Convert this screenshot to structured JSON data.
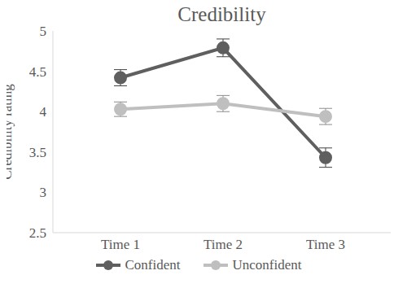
{
  "chart_data": {
    "type": "line",
    "title": "Credibility",
    "y_label": "Credibility rating",
    "categories": [
      "Time 1",
      "Time 2",
      "Time 3"
    ],
    "series": [
      {
        "name": "Confident",
        "color": "#5f5f5f",
        "values": [
          4.42,
          4.79,
          3.43
        ],
        "errors": [
          0.1,
          0.11,
          0.12
        ],
        "marker": "circle"
      },
      {
        "name": "Unconfident",
        "color": "#bfbfbf",
        "values": [
          4.03,
          4.1,
          3.94
        ],
        "errors": [
          0.09,
          0.1,
          0.1
        ],
        "marker": "circle"
      }
    ],
    "ylim": [
      2.5,
      5
    ],
    "yticks": [
      2.5,
      3,
      3.5,
      4,
      4.5,
      5
    ],
    "grid": false,
    "legend": "bottom"
  }
}
